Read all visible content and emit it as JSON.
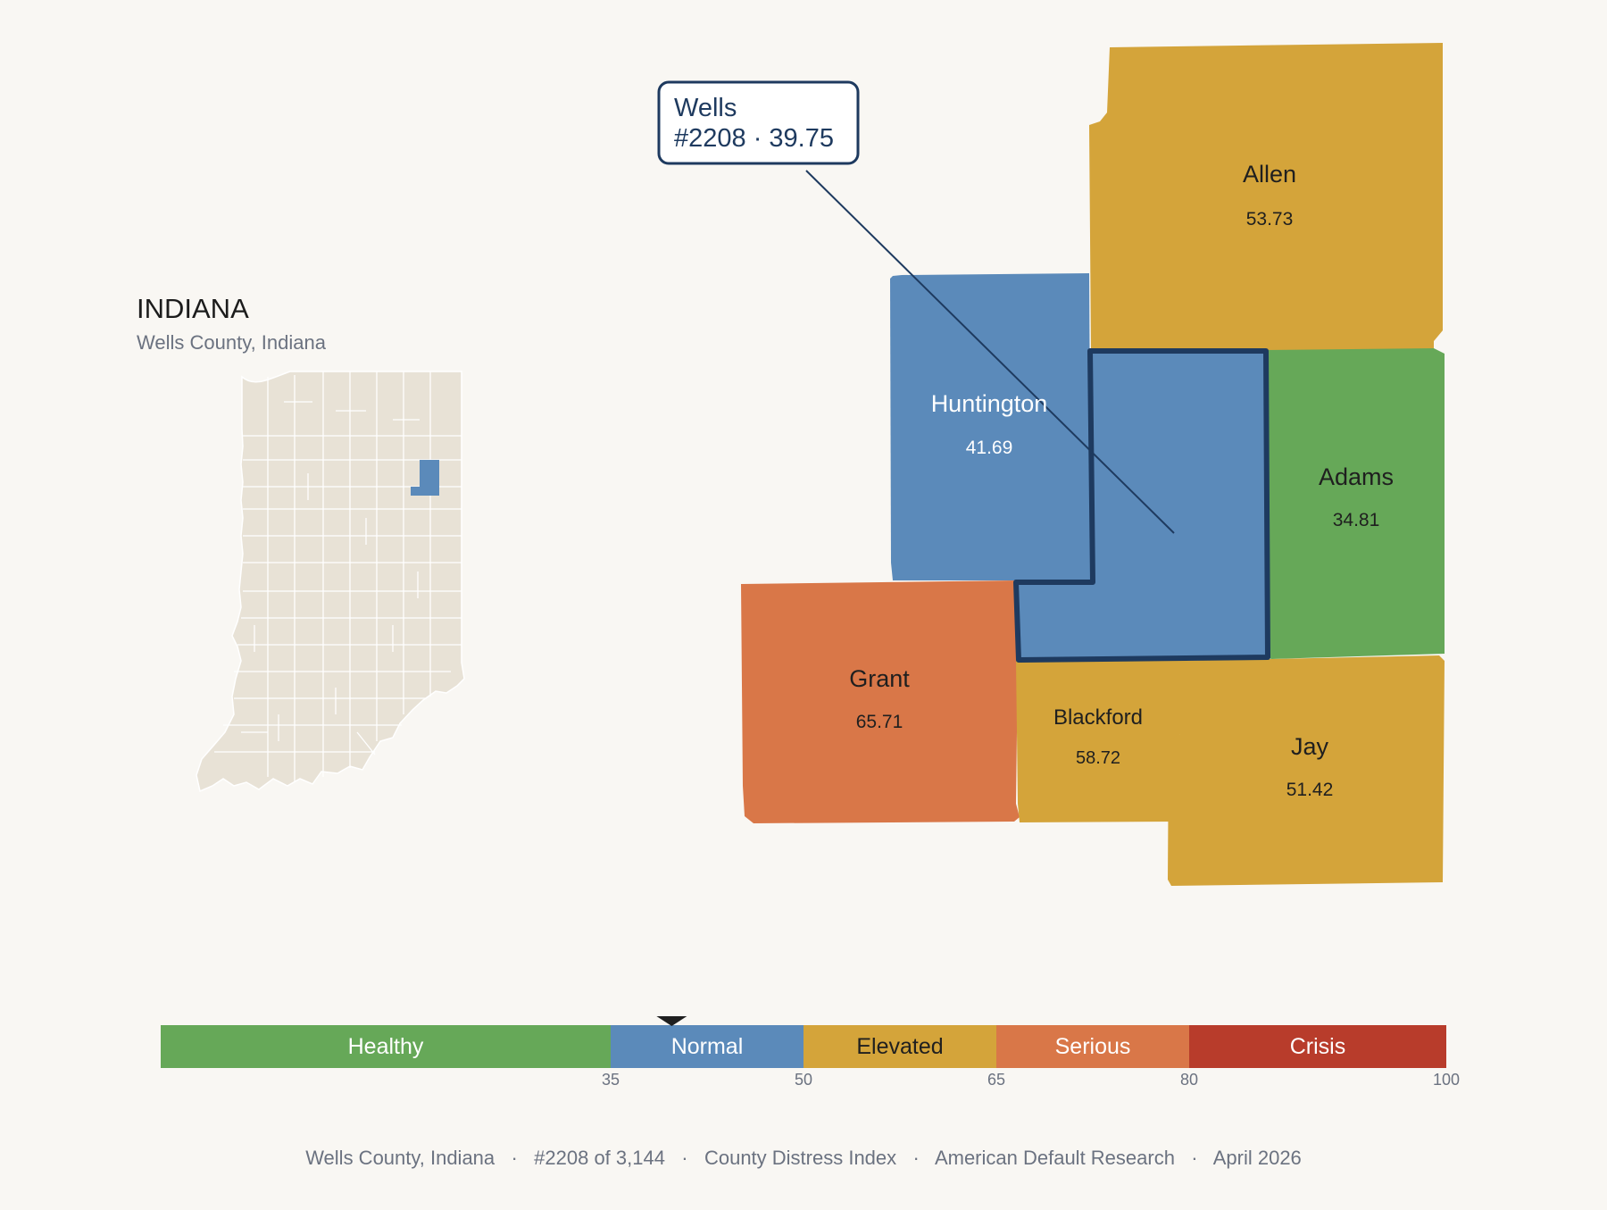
{
  "state": {
    "title": "INDIANA",
    "subtitle": "Wells County, Indiana",
    "fill_color": "#e8e2d6",
    "highlight_color": "#5b8aba"
  },
  "callout": {
    "line1": "Wells",
    "line2": "#2208 · 39.75"
  },
  "counties": [
    {
      "id": "allen",
      "name": "Allen",
      "value": "53.73",
      "color": "#d4a43a",
      "text_color": "#1f1f1f"
    },
    {
      "id": "huntington",
      "name": "Huntington",
      "value": "41.69",
      "color": "#5b8aba",
      "text_color": "#ffffff"
    },
    {
      "id": "adams",
      "name": "Adams",
      "value": "34.81",
      "color": "#66a858",
      "text_color": "#1f1f1f"
    },
    {
      "id": "grant",
      "name": "Grant",
      "value": "65.71",
      "color": "#d97748",
      "text_color": "#1f1f1f"
    },
    {
      "id": "blackford",
      "name": "Blackford",
      "value": "58.72",
      "color": "#d4a43a",
      "text_color": "#1f1f1f"
    },
    {
      "id": "jay",
      "name": "Jay",
      "value": "51.42",
      "color": "#d4a43a",
      "text_color": "#1f1f1f"
    }
  ],
  "selected_county": {
    "name": "Wells",
    "value": 39.75,
    "color": "#5b8aba",
    "outline_color": "#1e3a5f"
  },
  "scale": {
    "min": 0,
    "max": 100,
    "marker_value": 39.75,
    "segments": [
      {
        "label": "Healthy",
        "from": 0,
        "to": 35,
        "color": "#66a858",
        "text_color": "#ffffff"
      },
      {
        "label": "Normal",
        "from": 35,
        "to": 50,
        "color": "#5b8aba",
        "text_color": "#ffffff"
      },
      {
        "label": "Elevated",
        "from": 50,
        "to": 65,
        "color": "#d4a43a",
        "text_color": "#1f1f1f"
      },
      {
        "label": "Serious",
        "from": 65,
        "to": 80,
        "color": "#d97748",
        "text_color": "#ffffff"
      },
      {
        "label": "Crisis",
        "from": 80,
        "to": 100,
        "color": "#b83c2b",
        "text_color": "#ffffff"
      }
    ],
    "ticks": [
      "35",
      "50",
      "65",
      "80",
      "100"
    ]
  },
  "footer": {
    "text": "Wells County, Indiana   ·   #2208 of 3,144   ·   County Distress Index   ·   American Default Research   ·   April 2026"
  }
}
